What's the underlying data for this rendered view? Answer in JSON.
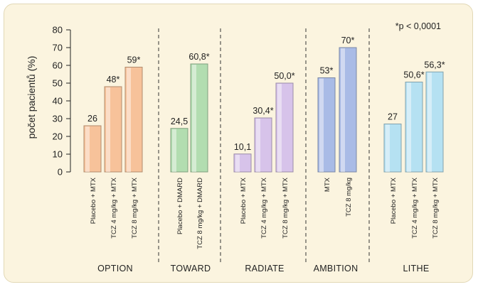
{
  "chart_data": {
    "type": "bar",
    "ylabel": "počet pacientů (%)",
    "ylim": [
      0,
      80
    ],
    "yticks": [
      0,
      10,
      20,
      30,
      40,
      50,
      60,
      70,
      80
    ],
    "note": "*p < 0,0001",
    "groups": [
      {
        "name": "OPTION",
        "bars": [
          {
            "label": "Placebo + MTX",
            "value": 26,
            "value_label": "26",
            "color": "#f7c29a"
          },
          {
            "label": "TCZ 4 mg/kg + MTX",
            "value": 48,
            "value_label": "48*",
            "color": "#f7c29a"
          },
          {
            "label": "TCZ 8 mg/kg + MTX",
            "value": 59,
            "value_label": "59*",
            "color": "#f7c29a"
          }
        ]
      },
      {
        "name": "TOWARD",
        "bars": [
          {
            "label": "Placebo + DMARD",
            "value": 24.5,
            "value_label": "24,5",
            "color": "#b2ddb0"
          },
          {
            "label": "TCZ 8 mg/kg + DMARD",
            "value": 60.8,
            "value_label": "60,8*",
            "color": "#b2ddb0"
          }
        ]
      },
      {
        "name": "RADIATE",
        "bars": [
          {
            "label": "Placebo + MTX",
            "value": 10.1,
            "value_label": "10,1",
            "color": "#d7c3ea"
          },
          {
            "label": "TCZ 4 mg/kg + MTX",
            "value": 30.4,
            "value_label": "30,4*",
            "color": "#d7c3ea"
          },
          {
            "label": "TCZ 8 mg/kg + MTX",
            "value": 50.0,
            "value_label": "50,0*",
            "color": "#d7c3ea"
          }
        ]
      },
      {
        "name": "AMBITION",
        "bars": [
          {
            "label": "MTX",
            "value": 53,
            "value_label": "53*",
            "color": "#a9bbe6"
          },
          {
            "label": "TCZ 8 mg/kg",
            "value": 70,
            "value_label": "70*",
            "color": "#a9bbe6"
          }
        ]
      },
      {
        "name": "LITHE",
        "bars": [
          {
            "label": "Placebo + MTX",
            "value": 27,
            "value_label": "27",
            "color": "#b5e1f2"
          },
          {
            "label": "TCZ 4 mg/kg + MTX",
            "value": 50.6,
            "value_label": "50,6*",
            "color": "#b5e1f2"
          },
          {
            "label": "TCZ 8 mg/kg + MTX",
            "value": 56.3,
            "value_label": "56,3*",
            "color": "#b5e1f2"
          }
        ]
      }
    ]
  }
}
